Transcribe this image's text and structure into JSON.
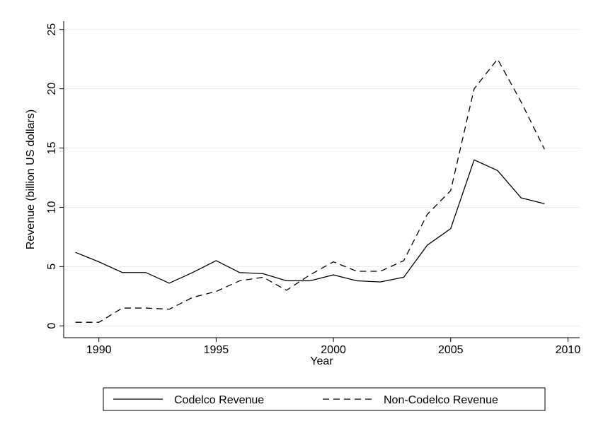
{
  "chart_data": {
    "type": "line",
    "x": [
      1989,
      1990,
      1991,
      1992,
      1993,
      1994,
      1995,
      1996,
      1997,
      1998,
      1999,
      2000,
      2001,
      2002,
      2003,
      2004,
      2005,
      2006,
      2007,
      2008,
      2009
    ],
    "series": [
      {
        "name": "Codelco Revenue",
        "color": "#000000",
        "dash": "solid",
        "values": [
          6.2,
          5.4,
          4.5,
          4.5,
          3.6,
          4.5,
          5.5,
          4.5,
          4.4,
          3.8,
          3.8,
          4.3,
          3.8,
          3.7,
          4.1,
          6.8,
          8.2,
          14.0,
          13.1,
          10.8,
          10.3
        ]
      },
      {
        "name": "Non-Codelco Revenue",
        "color": "#000000",
        "dash": "dashed",
        "values": [
          0.3,
          0.3,
          1.5,
          1.5,
          1.4,
          2.4,
          2.9,
          3.8,
          4.1,
          3.0,
          4.3,
          5.4,
          4.6,
          4.6,
          5.5,
          9.4,
          11.4,
          20.0,
          22.5,
          18.9,
          14.9
        ]
      }
    ],
    "x_label": "Year",
    "y_label": "Revenue (billion US dollars)",
    "xlim": [
      1988.5,
      2010.5
    ],
    "xticks": [
      1990,
      1995,
      2000,
      2005,
      2010
    ],
    "ylim": [
      -1,
      25.7
    ],
    "yticks": [
      0,
      5,
      10,
      15,
      20,
      25
    ],
    "grid": true,
    "legend": "bottom"
  }
}
